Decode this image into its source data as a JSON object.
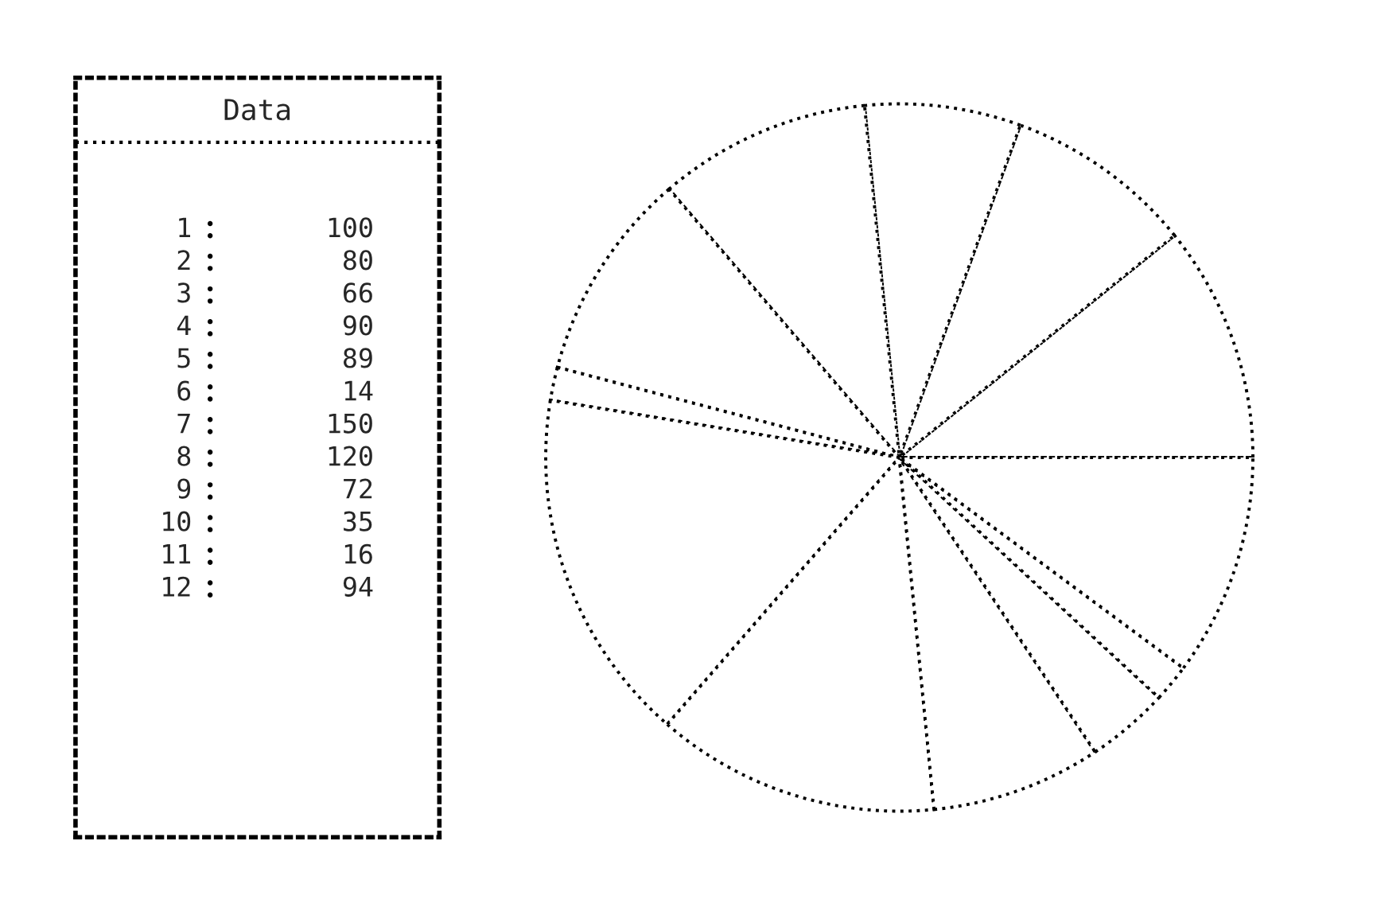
{
  "chart_data": {
    "type": "pie",
    "title": "Data",
    "categories": [
      "1",
      "2",
      "3",
      "4",
      "5",
      "6",
      "7",
      "8",
      "9",
      "10",
      "11",
      "12"
    ],
    "values": [
      100,
      80,
      66,
      90,
      89,
      14,
      150,
      120,
      72,
      35,
      16,
      94
    ],
    "colors": [
      "#ffffff",
      "#ffffff",
      "#ffffff",
      "#ffffff",
      "#ffffff",
      "#ffffff",
      "#ffffff",
      "#ffffff",
      "#ffffff",
      "#ffffff",
      "#ffffff",
      "#ffffff"
    ],
    "data_labels": true,
    "legend": "left",
    "line_style": "dotted"
  }
}
